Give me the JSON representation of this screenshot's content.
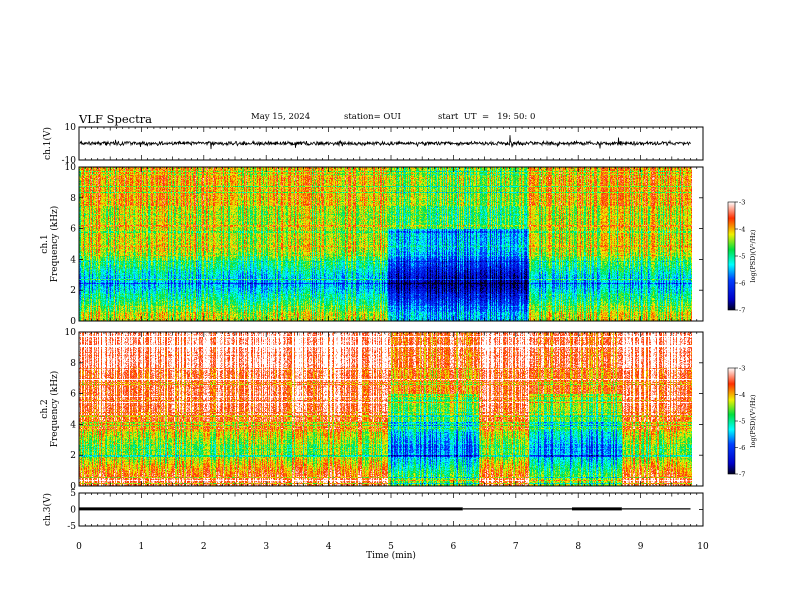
{
  "header": {
    "title": "VLF Spectra",
    "date": "May 15, 2024",
    "station": "station= OUI",
    "start": "start  UT  =   19: 50: 0"
  },
  "chart_data": [
    {
      "type": "line",
      "panel": "ch1-waveform",
      "ylabel": "ch.1(V)",
      "ylim": [
        -10,
        10
      ],
      "yticks": [
        "10",
        "-10"
      ],
      "xlim": [
        0,
        10
      ],
      "signal_level_v": 0.1,
      "noise_amplitude_v": 0.9
    },
    {
      "type": "heatmap",
      "panel": "ch1-spectrogram",
      "ylabel": "ch.1\nFrequency (kHz)",
      "ylabel_line1": "ch.1",
      "ylabel_line2": "Frequency  (kHz)",
      "ylim": [
        0,
        10
      ],
      "yticks": [
        "0",
        "2",
        "4",
        "6",
        "8",
        "10"
      ],
      "xlim": [
        0,
        10
      ],
      "data_end_min": 9.8,
      "colorbar": {
        "label": "log(PSD)(V²/Hz)",
        "range": [
          -7,
          -3
        ],
        "ticks": [
          "-3",
          "-4",
          "-5",
          "-6",
          "-7"
        ]
      },
      "quiet_intervals_min": [
        [
          4.95,
          7.2
        ]
      ],
      "base_level": -4.3
    },
    {
      "type": "heatmap",
      "panel": "ch2-spectrogram",
      "ylabel_line1": "ch.2",
      "ylabel_line2": "Frequency  (kHz)",
      "ylim": [
        0,
        10
      ],
      "yticks": [
        "0",
        "2",
        "4",
        "6",
        "8",
        "10"
      ],
      "xlim": [
        0,
        10
      ],
      "data_end_min": 9.8,
      "colorbar": {
        "label": "log(PSD)(V²/Hz)",
        "range": [
          -7,
          -3
        ],
        "ticks": [
          "-3",
          "-4",
          "-5",
          "-6",
          "-7"
        ]
      },
      "quiet_intervals_min": [
        [
          4.95,
          6.4
        ],
        [
          7.2,
          8.7
        ]
      ],
      "base_level": -3.4
    },
    {
      "type": "line",
      "panel": "ch3-level",
      "ylabel": "ch.3(V)",
      "ylim": [
        -5,
        5
      ],
      "yticks": [
        "5",
        "0",
        "-5"
      ],
      "xlim": [
        0,
        10
      ],
      "xticks": [
        "0",
        "1",
        "2",
        "3",
        "4",
        "5",
        "6",
        "7",
        "8",
        "9",
        "10"
      ],
      "xlabel": "Time  (min)",
      "segments": [
        {
          "x": [
            0,
            6.15
          ],
          "y": 0.2,
          "thick": true
        },
        {
          "x": [
            6.15,
            7.9
          ],
          "y": 0.2,
          "thick": false
        },
        {
          "x": [
            7.9,
            8.7
          ],
          "y": 0.2,
          "thick": true
        },
        {
          "x": [
            8.7,
            9.8
          ],
          "y": 0.2,
          "thick": false
        }
      ]
    }
  ]
}
